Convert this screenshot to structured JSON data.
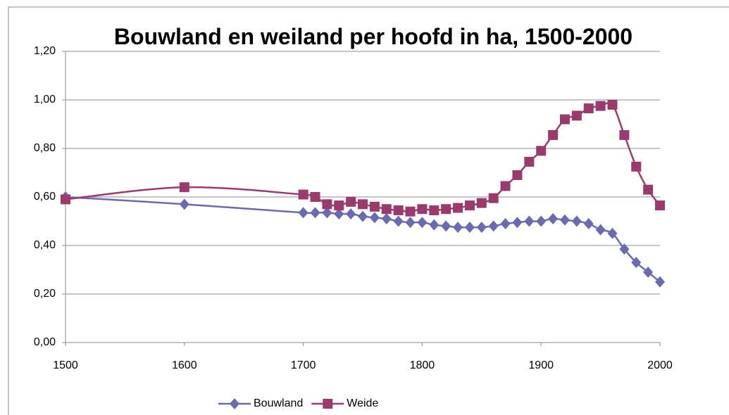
{
  "chart_data": {
    "type": "line",
    "title": "Bouwland en weiland per hoofd in ha, 1500-2000",
    "x": [
      1500,
      1600,
      1700,
      1710,
      1720,
      1730,
      1740,
      1750,
      1760,
      1770,
      1780,
      1790,
      1800,
      1810,
      1820,
      1830,
      1840,
      1850,
      1860,
      1870,
      1880,
      1890,
      1900,
      1910,
      1920,
      1930,
      1940,
      1950,
      1960,
      1970,
      1980,
      1990,
      2000
    ],
    "series": [
      {
        "name": "Bouwland",
        "color": "#6a6aae",
        "marker": "diamond",
        "values": [
          0.6,
          0.57,
          0.535,
          0.535,
          0.535,
          0.53,
          0.53,
          0.52,
          0.515,
          0.51,
          0.5,
          0.495,
          0.495,
          0.485,
          0.48,
          0.475,
          0.475,
          0.475,
          0.48,
          0.49,
          0.495,
          0.5,
          0.5,
          0.51,
          0.505,
          0.5,
          0.49,
          0.465,
          0.45,
          0.385,
          0.33,
          0.29,
          0.25
        ]
      },
      {
        "name": "Weide",
        "color": "#9b3a6c",
        "marker": "square",
        "values": [
          0.59,
          0.64,
          0.61,
          0.6,
          0.57,
          0.565,
          0.58,
          0.57,
          0.56,
          0.55,
          0.545,
          0.54,
          0.55,
          0.545,
          0.55,
          0.555,
          0.565,
          0.575,
          0.595,
          0.645,
          0.69,
          0.745,
          0.79,
          0.855,
          0.92,
          0.935,
          0.965,
          0.975,
          0.98,
          0.855,
          0.725,
          0.63,
          0.565
        ]
      }
    ],
    "xlim": [
      1500,
      2000
    ],
    "xticks": [
      1500,
      1600,
      1700,
      1800,
      1900,
      2000
    ],
    "ylim": [
      0,
      1.2
    ],
    "yticks": [
      {
        "value": 0,
        "label": "0,00"
      },
      {
        "value": 0.2,
        "label": "0,20"
      },
      {
        "value": 0.4,
        "label": "0,40"
      },
      {
        "value": 0.6,
        "label": "0,60"
      },
      {
        "value": 0.8,
        "label": "0,80"
      },
      {
        "value": 1.0,
        "label": "1,00"
      },
      {
        "value": 1.2,
        "label": "1,20"
      }
    ],
    "grid": true,
    "legend": "bottom",
    "smooth": true
  }
}
